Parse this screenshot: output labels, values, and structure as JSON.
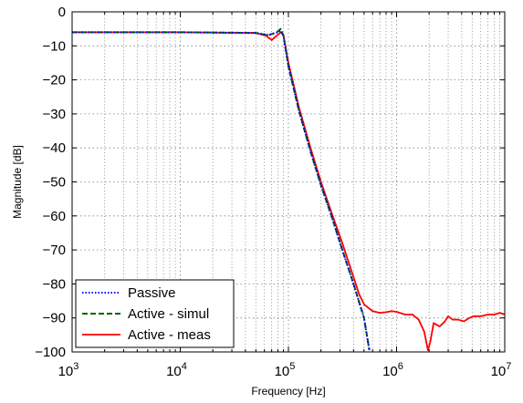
{
  "chart_data": {
    "type": "line",
    "title": "",
    "xlabel": "Frequency [Hz]",
    "ylabel": "Magnitude [dB]",
    "xscale": "log",
    "xlim": [
      1000,
      10000000
    ],
    "ylim": [
      -100,
      0
    ],
    "grid": true,
    "legend_position": "bottom-left",
    "x_ticks": [
      {
        "value": 1000,
        "base": "10",
        "exp": "3"
      },
      {
        "value": 10000,
        "base": "10",
        "exp": "4"
      },
      {
        "value": 100000,
        "base": "10",
        "exp": "5"
      },
      {
        "value": 1000000,
        "base": "10",
        "exp": "6"
      },
      {
        "value": 10000000,
        "base": "10",
        "exp": "7"
      }
    ],
    "y_ticks": [
      {
        "value": 0,
        "label": "0"
      },
      {
        "value": -10,
        "label": "-10"
      },
      {
        "value": -20,
        "label": "-20"
      },
      {
        "value": -30,
        "label": "-30"
      },
      {
        "value": -40,
        "label": "-40"
      },
      {
        "value": -50,
        "label": "-50"
      },
      {
        "value": -60,
        "label": "-60"
      },
      {
        "value": -70,
        "label": "-70"
      },
      {
        "value": -80,
        "label": "-80"
      },
      {
        "value": -90,
        "label": "-90"
      },
      {
        "value": -100,
        "label": "-100"
      }
    ],
    "series": [
      {
        "name": "Passive",
        "color": "#0000ff",
        "style": "dotted",
        "x": [
          1000,
          10000,
          50000,
          65000,
          80000,
          85000,
          90000,
          100000,
          125000,
          160000,
          200000,
          250000,
          315000,
          400000,
          500000,
          560000
        ],
        "y": [
          -6,
          -6,
          -6.2,
          -6.8,
          -6,
          -5.5,
          -7,
          -16,
          -29,
          -41,
          -51,
          -60,
          -70,
          -80,
          -90,
          -99.5
        ]
      },
      {
        "name": "Active - simul",
        "color": "#006400",
        "style": "dashed",
        "x": [
          1000,
          10000,
          50000,
          65000,
          78000,
          85000,
          90000,
          100000,
          125000,
          160000,
          200000,
          250000,
          315000,
          400000,
          500000,
          560000
        ],
        "y": [
          -6,
          -6,
          -6.2,
          -6.9,
          -6,
          -5,
          -7,
          -16,
          -29,
          -41,
          -51,
          -60,
          -70,
          -80,
          -90,
          -99.5
        ]
      },
      {
        "name": "Active - meas",
        "color": "#ff0000",
        "style": "solid",
        "x": [
          1000,
          10000,
          50000,
          62000,
          70000,
          78000,
          85000,
          90000,
          100000,
          125000,
          160000,
          200000,
          250000,
          315000,
          400000,
          450000,
          500000,
          600000,
          700000,
          800000,
          900000,
          1000000,
          1200000,
          1400000,
          1600000,
          1800000,
          1950000,
          2050000,
          2200000,
          2500000,
          2800000,
          3000000,
          3300000,
          3700000,
          4200000,
          4700000,
          5200000,
          6000000,
          7000000,
          8000000,
          9000000,
          10000000
        ],
        "y": [
          -6,
          -6,
          -6.2,
          -7,
          -8.3,
          -7,
          -6,
          -7,
          -15,
          -28,
          -40,
          -50,
          -59,
          -68,
          -78,
          -83,
          -86,
          -88,
          -88.5,
          -88.3,
          -88,
          -88.2,
          -89,
          -89,
          -90.5,
          -94,
          -99.5,
          -97,
          -91.5,
          -92.5,
          -91,
          -89.5,
          -90.5,
          -90.5,
          -91,
          -90,
          -89.5,
          -89.5,
          -89,
          -89,
          -88.5,
          -89
        ]
      }
    ]
  }
}
